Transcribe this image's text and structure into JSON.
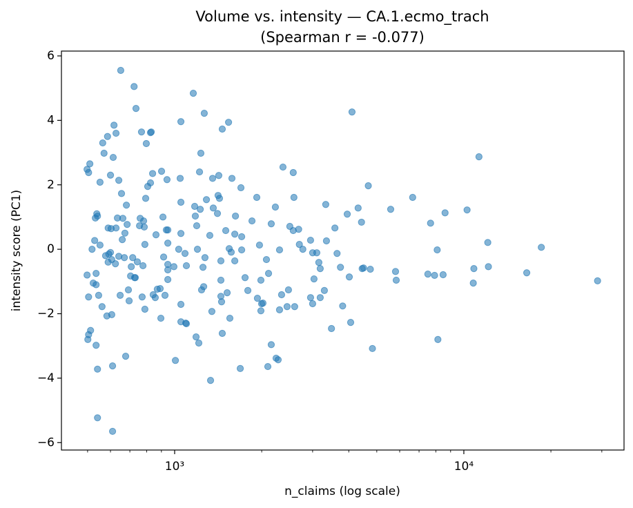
{
  "chart_data": {
    "type": "scatter",
    "title": "Volume vs. intensity — CA.1.ecmo_trach",
    "subtitle": "(Spearman r = -0.077)",
    "x_label": "n_claims (log scale)",
    "y_label": "intensity score (PC1)",
    "color": "#1f77b4",
    "xscale": "log",
    "xlim": [
      406,
      35800
    ],
    "ylim": [
      -6.23,
      6.15
    ],
    "xticks": [
      {
        "value": 1000,
        "label": "10³"
      },
      {
        "value": 10000,
        "label": "10⁴"
      }
    ],
    "xminorticks": [
      500,
      600,
      700,
      800,
      900,
      2000,
      3000,
      4000,
      5000,
      6000,
      7000,
      8000,
      9000,
      20000,
      30000
    ],
    "yticks": [
      {
        "value": -6,
        "label": "−6"
      },
      {
        "value": -4,
        "label": "−4"
      },
      {
        "value": -2,
        "label": "−2"
      },
      0,
      2,
      4,
      6
    ],
    "x": [
      498,
      504,
      509,
      498,
      504,
      501,
      504,
      512,
      518,
      523,
      529,
      532,
      535,
      535,
      538,
      541,
      541,
      535,
      541,
      546,
      552,
      552,
      561,
      564,
      570,
      577,
      583,
      586,
      589,
      589,
      592,
      600,
      600,
      603,
      606,
      606,
      610,
      610,
      613,
      617,
      627,
      624,
      627,
      634,
      641,
      641,
      648,
      651,
      655,
      659,
      662,
      670,
      673,
      677,
      681,
      685,
      692,
      696,
      704,
      708,
      716,
      724,
      727,
      731,
      735,
      743,
      756,
      760,
      768,
      772,
      777,
      781,
      785,
      789,
      789,
      794,
      798,
      807,
      825,
      825,
      830,
      839,
      843,
      857,
      862,
      871,
      891,
      896,
      901,
      911,
      916,
      926,
      936,
      941,
      947,
      947,
      947,
      947,
      947,
      994,
      1006,
      1033,
      1045,
      1051,
      1051,
      1051,
      1051,
      1051,
      1086,
      1092,
      1098,
      1098,
      1160,
      1173,
      1179,
      1186,
      1192,
      1199,
      1212,
      1219,
      1226,
      1232,
      1239,
      1253,
      1260,
      1266,
      1273,
      1288,
      1323,
      1331,
      1345,
      1353,
      1360,
      1406,
      1413,
      1421,
      1429,
      1445,
      1445,
      1445,
      1453,
      1461,
      1461,
      1502,
      1519,
      1536,
      1544,
      1552,
      1569,
      1578,
      1614,
      1614,
      1623,
      1686,
      1695,
      1705,
      1705,
      1752,
      1791,
      1851,
      1923,
      1933,
      1965,
      1987,
      1987,
      1998,
      2020,
      2077,
      2112,
      2100,
      2158,
      2158,
      2230,
      2243,
      2280,
      2305,
      2305,
      2343,
      2369,
      2448,
      2475,
      2502,
      2571,
      2571,
      2585,
      2600,
      2684,
      2699,
      2775,
      2951,
      2951,
      3000,
      3000,
      3033,
      3101,
      3152,
      3187,
      3187,
      3294,
      3330,
      3349,
      3485,
      3582,
      3644,
      3744,
      3810,
      3952,
      4017,
      4061,
      4105,
      4310,
      4427,
      4451,
      4500,
      4673,
      4750,
      4829,
      5585,
      5805,
      5837,
      6653,
      7508,
      7672,
      7921,
      8088,
      8132,
      8478,
      8611,
      10260,
      10780,
      10830,
      11280,
      12100,
      12160,
      16500,
      18530,
      29000
    ],
    "values": [
      2.48,
      2.38,
      2.65,
      -0.8,
      -1.48,
      -2.8,
      -2.65,
      -2.52,
      0.0,
      -1.05,
      0.27,
      0.97,
      -1.1,
      -0.75,
      1.1,
      1.03,
      -5.23,
      -2.98,
      -3.72,
      -1.43,
      0.13,
      2.08,
      -1.78,
      3.3,
      2.98,
      -0.2,
      -2.07,
      3.5,
      -0.4,
      0.66,
      -0.15,
      2.3,
      -0.1,
      0.64,
      -0.32,
      -2.03,
      -3.62,
      -5.65,
      2.85,
      3.85,
      3.6,
      -0.45,
      0.66,
      0.97,
      2.14,
      -0.22,
      -1.43,
      5.55,
      1.73,
      0.3,
      0.96,
      -0.26,
      0.5,
      -3.32,
      1.37,
      0.77,
      -1.26,
      -1.6,
      -0.83,
      -0.54,
      -0.26,
      5.05,
      -0.88,
      -0.88,
      4.37,
      -0.39,
      0.73,
      0.96,
      3.64,
      -1.48,
      -0.51,
      0.88,
      0.69,
      0.15,
      -1.86,
      1.58,
      3.28,
      1.95,
      2.06,
      3.62,
      3.64,
      2.35,
      -1.41,
      -1.5,
      0.45,
      -1.24,
      -1.22,
      -2.14,
      2.42,
      1.0,
      -0.24,
      -1.43,
      0.6,
      2.16,
      0.6,
      -0.64,
      0.19,
      -0.47,
      -0.94,
      -0.54,
      -3.45,
      0.0,
      2.2,
      1.46,
      0.49,
      -1.71,
      -2.25,
      3.96,
      -0.13,
      -2.29,
      -0.51,
      -2.31,
      4.84,
      1.33,
      1.03,
      -2.72,
      0.73,
      0.0,
      -2.91,
      2.4,
      1.24,
      2.98,
      -1.26,
      -0.56,
      -1.16,
      4.22,
      -0.26,
      1.54,
      0.43,
      -4.07,
      -1.93,
      2.2,
      1.28,
      1.11,
      1.67,
      2.29,
      1.58,
      -0.36,
      -1.46,
      -0.96,
      -1.63,
      -2.61,
      3.73,
      0.58,
      -1.35,
      3.94,
      0.02,
      -2.14,
      -0.09,
      2.2,
      -0.36,
      0.47,
      1.03,
      -3.7,
      1.91,
      0.39,
      -0.02,
      -0.88,
      -1.28,
      0.88,
      1.61,
      -1.52,
      0.13,
      -0.96,
      -1.91,
      -1.69,
      -1.67,
      -0.32,
      -0.75,
      -3.64,
      0.79,
      -2.96,
      1.31,
      -3.38,
      -3.43,
      -0.02,
      -1.88,
      -1.41,
      2.55,
      -1.78,
      -1.26,
      0.71,
      2.38,
      0.58,
      1.61,
      -1.78,
      0.62,
      0.15,
      0.0,
      0.28,
      -1.5,
      -1.69,
      -0.11,
      -0.92,
      -0.11,
      -0.41,
      -1.5,
      -0.6,
      -1.28,
      1.39,
      0.26,
      -2.46,
      0.66,
      -0.13,
      -0.56,
      -1.76,
      1.09,
      -0.86,
      -2.27,
      4.26,
      1.28,
      0.84,
      -0.6,
      -0.58,
      1.97,
      -0.62,
      -3.08,
      1.24,
      -0.69,
      -0.96,
      1.61,
      -0.77,
      0.81,
      -0.81,
      -0.02,
      -2.8,
      -0.79,
      1.13,
      1.22,
      -1.05,
      -0.6,
      2.87,
      0.21,
      -0.54,
      -0.73,
      0.06,
      -0.98
    ]
  }
}
